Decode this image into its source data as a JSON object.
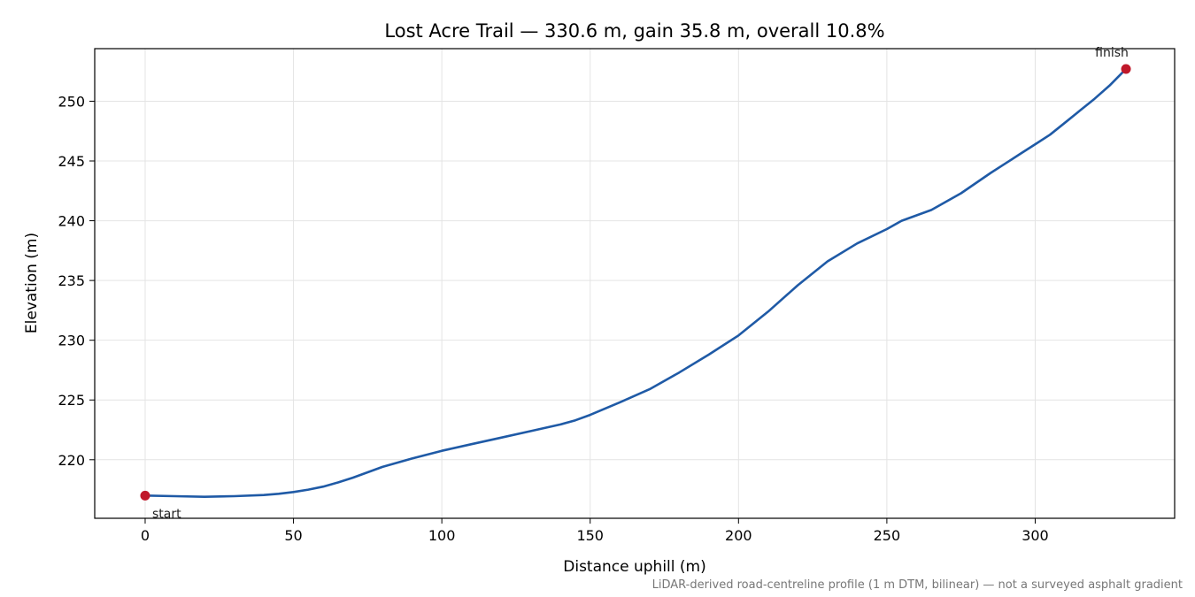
{
  "chart_data": {
    "type": "line",
    "title": "Lost Acre Trail — 330.6 m, gain 35.8 m, overall 10.8%",
    "xlabel": "Distance uphill (m)",
    "ylabel": "Elevation (m)",
    "xlim": [
      -17,
      347
    ],
    "ylim": [
      215.1,
      254.4
    ],
    "xticks": [
      0,
      50,
      100,
      150,
      200,
      250,
      300
    ],
    "yticks": [
      220,
      225,
      230,
      235,
      240,
      245,
      250
    ],
    "grid": true,
    "series": [
      {
        "color": "#1f5aa6",
        "x": [
          0,
          10,
          20,
          30,
          40,
          45,
          50,
          55,
          60,
          65,
          70,
          80,
          90,
          100,
          110,
          120,
          130,
          140,
          145,
          150,
          160,
          170,
          180,
          190,
          200,
          210,
          220,
          230,
          240,
          250,
          255,
          265,
          275,
          285,
          290,
          295,
          300,
          305,
          310,
          315,
          320,
          325,
          330.6
        ],
        "y": [
          217.0,
          216.95,
          216.9,
          216.95,
          217.05,
          217.15,
          217.3,
          217.5,
          217.75,
          218.1,
          218.5,
          219.4,
          220.1,
          220.75,
          221.3,
          221.85,
          222.4,
          222.95,
          223.3,
          223.75,
          224.8,
          225.9,
          227.3,
          228.8,
          230.4,
          232.4,
          234.6,
          236.6,
          238.1,
          239.3,
          240.0,
          240.9,
          242.3,
          244.0,
          244.8,
          245.6,
          246.4,
          247.2,
          248.2,
          249.2,
          250.2,
          251.3,
          252.7
        ]
      }
    ],
    "markers": [
      {
        "label": "start",
        "x": 0,
        "y": 217.0,
        "color": "#c0182a"
      },
      {
        "label": "finish",
        "x": 330.6,
        "y": 252.7,
        "color": "#c0182a"
      }
    ],
    "footnote": "LiDAR-derived road-centreline profile (1 m DTM, bilinear) — not a surveyed asphalt gradient"
  }
}
